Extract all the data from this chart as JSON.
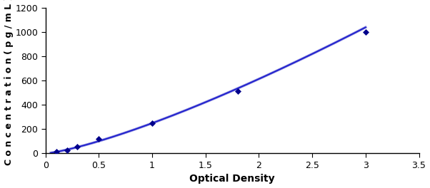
{
  "x_data": [
    0.1,
    0.2,
    0.3,
    0.5,
    1.0,
    1.8,
    3.0
  ],
  "y_data": [
    12,
    28,
    55,
    120,
    248,
    510,
    1000
  ],
  "line_color": "#1a1acd",
  "marker_color": "#00008B",
  "marker_style": "D",
  "marker_size": 4,
  "linewidth": 1.2,
  "xlabel": "Optical Density",
  "ylabel": "Concentration(pg/mL)",
  "xlim": [
    0,
    3.5
  ],
  "ylim": [
    0,
    1200
  ],
  "xticks": [
    0,
    0.5,
    1.0,
    1.5,
    2.0,
    2.5,
    3.0,
    3.5
  ],
  "yticks": [
    0,
    200,
    400,
    600,
    800,
    1000,
    1200
  ],
  "xlabel_fontsize": 10,
  "ylabel_fontsize": 9,
  "tick_fontsize": 9,
  "fig_width": 6.02,
  "fig_height": 2.64,
  "dpi": 100,
  "background_color": "#ffffff"
}
